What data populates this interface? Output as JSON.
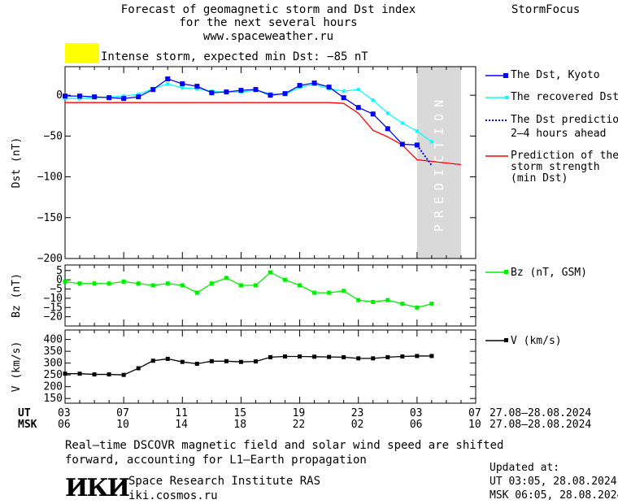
{
  "header": {
    "title_line1": "Forecast of geomagnetic storm and Dst index",
    "title_line2": "for the next several hours",
    "url": "www.spaceweather.ru",
    "brand": "StormFocus"
  },
  "storm_status": {
    "text": "Intense storm, expected min Dst: −85 nT",
    "color": "#ffff00"
  },
  "legend": {
    "dst_kyoto": "The Dst, Kyoto",
    "dst_recovered": "The recovered Dst",
    "prediction_line1": "The Dst prediction",
    "prediction_line2": "2–4 hours ahead",
    "strength_line1": "Prediction of the",
    "strength_line2": "storm strength",
    "strength_line3": "(min Dst)",
    "bz": "Bz (nT, GSM)",
    "v": "V (km/s)"
  },
  "prediction_label": "PREDICTION",
  "time_axis": {
    "ut_label": "UT",
    "msk_label": "MSK",
    "ut_ticks": [
      "03",
      "07",
      "11",
      "15",
      "19",
      "23",
      "03",
      "07"
    ],
    "msk_ticks": [
      "06",
      "10",
      "14",
      "18",
      "22",
      "02",
      "06",
      "10"
    ],
    "ut_range": "27.08–28.08.2024",
    "msk_range": "27.08–28.08.2024"
  },
  "footer": {
    "note_line1": "Real–time DSCOVR magnetic field and solar wind speed are shifted",
    "note_line2": "forward, accounting for L1–Earth propagation",
    "logo": "ИКИ",
    "institute": "Space Research Institute RAS",
    "site": "iki.cosmos.ru",
    "updated_label": "Updated at:",
    "updated_ut": "UT   03:05, 28.08.2024",
    "updated_msk": "MSK 06:05, 28.08.2024"
  },
  "colors": {
    "dst_kyoto": "#0000ff",
    "dst_recovered": "#00ffff",
    "prediction_dots": "#0000ff",
    "strength": "#ff0000",
    "bz": "#00ee00",
    "v": "#000000",
    "prediction_zone": "#d9d9d9"
  },
  "chart_data": [
    {
      "type": "line",
      "ylabel": "Dst (nT)",
      "ylim": [
        -200,
        35
      ],
      "yticks": [
        0,
        -50,
        -100,
        -150,
        -200
      ],
      "x_hours_ut": "hours after 27.08 03:00 UT",
      "series": [
        {
          "name": "The Dst, Kyoto",
          "x": [
            0,
            1,
            2,
            3,
            4,
            5,
            6,
            7,
            8,
            9,
            10,
            11,
            12,
            13,
            14,
            15,
            16,
            17,
            18,
            19,
            20,
            21,
            22,
            23,
            24
          ],
          "values": [
            -1,
            -1,
            -2,
            -3,
            -4,
            -2,
            7,
            20,
            14,
            11,
            3,
            4,
            6,
            7,
            0,
            2,
            12,
            15,
            10,
            -3,
            -15,
            -23,
            -41,
            -60,
            -61
          ]
        },
        {
          "name": "The recovered Dst",
          "x": [
            0,
            1,
            2,
            3,
            4,
            5,
            6,
            7,
            8,
            9,
            10,
            11,
            12,
            13,
            14,
            15,
            16,
            17,
            18,
            19,
            20,
            21,
            22,
            23,
            24,
            25
          ],
          "values": [
            -4,
            -4,
            -3,
            -2,
            -1,
            1,
            8,
            14,
            9,
            8,
            5,
            4,
            4,
            6,
            2,
            1,
            10,
            13,
            8,
            5,
            7,
            -6,
            -22,
            -34,
            -44,
            -57
          ]
        },
        {
          "name": "The Dst prediction 2–4 hours ahead",
          "x": [
            24,
            25
          ],
          "values": [
            -61,
            -86
          ]
        },
        {
          "name": "Prediction of the storm strength (min Dst)",
          "x": [
            0,
            18,
            19,
            20,
            21,
            22,
            23,
            24,
            27
          ],
          "values": [
            -9,
            -9,
            -10,
            -22,
            -43,
            -51,
            -61,
            -79,
            -85
          ]
        }
      ]
    },
    {
      "type": "line",
      "ylabel": "Bz (nT)",
      "ylim": [
        -25,
        8
      ],
      "yticks": [
        5,
        0,
        -5,
        -10,
        -15,
        -20
      ],
      "series": [
        {
          "name": "Bz (nT, GSM)",
          "x": [
            0,
            1,
            2,
            3,
            4,
            5,
            6,
            7,
            8,
            9,
            10,
            11,
            12,
            13,
            14,
            15,
            16,
            17,
            18,
            19,
            20,
            21,
            22,
            23,
            24,
            25
          ],
          "values": [
            -1,
            -2,
            -2,
            -2,
            -1,
            -2,
            -3,
            -2,
            -3,
            -7,
            -2,
            1,
            -3,
            -3,
            4,
            0,
            -3,
            -7,
            -7,
            -6,
            -11,
            -12,
            -11,
            -13,
            -15,
            -13
          ]
        }
      ]
    },
    {
      "type": "line",
      "ylabel": "V (km/s)",
      "ylim": [
        130,
        440
      ],
      "yticks": [
        400,
        350,
        300,
        250,
        200,
        150
      ],
      "series": [
        {
          "name": "V (km/s)",
          "x": [
            0,
            1,
            2,
            3,
            4,
            5,
            6,
            7,
            8,
            9,
            10,
            11,
            12,
            13,
            14,
            15,
            16,
            17,
            18,
            19,
            20,
            21,
            22,
            23,
            24,
            25
          ],
          "values": [
            255,
            255,
            252,
            252,
            250,
            278,
            310,
            318,
            305,
            297,
            308,
            308,
            305,
            307,
            325,
            328,
            328,
            327,
            326,
            325,
            320,
            320,
            325,
            328,
            330,
            330
          ]
        }
      ]
    }
  ]
}
